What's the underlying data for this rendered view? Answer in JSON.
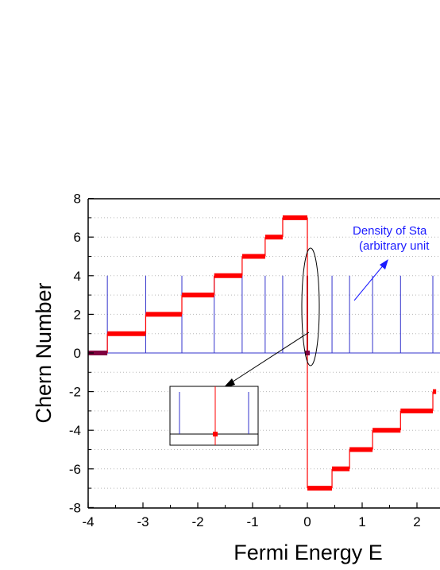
{
  "chart_data": {
    "type": "line",
    "xlabel": "Fermi Energy E",
    "ylabel": "Chern Number",
    "xlim": [
      -4,
      2.35
    ],
    "ylim": [
      -8,
      8
    ],
    "x_ticks": [
      -4,
      -3,
      -2,
      -1,
      0,
      1,
      2
    ],
    "y_ticks": [
      -8,
      -6,
      -4,
      -2,
      0,
      2,
      4,
      6,
      8
    ],
    "grid": "horizontal dotted",
    "chern_steps": [
      {
        "x0": -4.0,
        "x1": -3.65,
        "value": 0
      },
      {
        "x0": -3.65,
        "x1": -2.95,
        "value": 1
      },
      {
        "x0": -2.95,
        "x1": -2.29,
        "value": 2
      },
      {
        "x0": -2.29,
        "x1": -1.7,
        "value": 3
      },
      {
        "x0": -1.7,
        "x1": -1.19,
        "value": 4
      },
      {
        "x0": -1.19,
        "x1": -0.77,
        "value": 5
      },
      {
        "x0": -0.77,
        "x1": -0.45,
        "value": 6
      },
      {
        "x0": -0.45,
        "x1": 0.0,
        "value": 7
      },
      {
        "x0": 0.0,
        "x1": 0.45,
        "value": -7
      },
      {
        "x0": 0.45,
        "x1": 0.77,
        "value": -6
      },
      {
        "x0": 0.77,
        "x1": 1.19,
        "value": -5
      },
      {
        "x0": 1.19,
        "x1": 1.7,
        "value": -4
      },
      {
        "x0": 1.7,
        "x1": 2.29,
        "value": -3
      },
      {
        "x0": 2.29,
        "x1": 2.35,
        "value": -2
      }
    ],
    "density_of_states_peaks": [
      -3.65,
      -2.95,
      -2.29,
      -1.7,
      -1.19,
      -0.77,
      -0.45,
      0.45,
      0.77,
      1.19,
      1.7,
      2.29
    ],
    "density_peak_height": 4,
    "annotation": {
      "line1": "Density of Sta",
      "line2": "(arbitrary unit"
    },
    "colors": {
      "chern": "#ff0000",
      "dos": "#3333cc",
      "annotation": "#1a1aff",
      "zero_step": "#800040"
    }
  }
}
